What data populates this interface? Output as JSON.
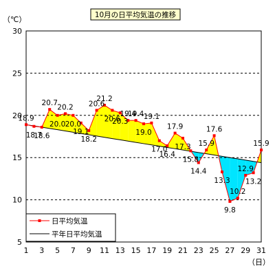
{
  "chart_data": {
    "type": "line",
    "title": "10月の日平均気温の推移",
    "ylabel": "（℃）",
    "xlabel": "（日）",
    "ylim": [
      5,
      30
    ],
    "y_ticks": [
      "5",
      "10",
      "15",
      "20",
      "25",
      "30"
    ],
    "x_ticks": [
      "1",
      "3",
      "5",
      "7",
      "9",
      "11",
      "13",
      "15",
      "17",
      "19",
      "21",
      "23",
      "25",
      "27",
      "29",
      "31"
    ],
    "x": [
      1,
      2,
      3,
      4,
      5,
      6,
      7,
      8,
      9,
      10,
      11,
      12,
      13,
      14,
      15,
      16,
      17,
      18,
      19,
      20,
      21,
      22,
      23,
      24,
      25,
      26,
      27,
      28,
      29,
      30,
      31
    ],
    "series": [
      {
        "name": "日平均気温",
        "values": [
          18.9,
          18.7,
          18.6,
          20.7,
          20.0,
          20.2,
          20.0,
          19.1,
          18.2,
          20.6,
          21.2,
          20.6,
          20.3,
          19.4,
          19.4,
          19.0,
          19.1,
          17.0,
          16.4,
          17.9,
          17.3,
          15.8,
          14.4,
          15.9,
          17.6,
          13.3,
          9.8,
          10.2,
          12.9,
          13.2,
          15.9
        ],
        "labels": [
          "18.9",
          "18.7",
          "18.6",
          "20.7",
          "20.0",
          "20.2",
          "20.0",
          "19.1",
          "18.2",
          "20.6",
          "21.2",
          "20.6",
          "20.3",
          "19.4",
          "19.4",
          "19.0",
          "19.1",
          "17.0",
          "16.4",
          "17.9",
          "17.3",
          "15.8",
          "14.4",
          "15.9",
          "17.6",
          "13.3",
          "9.8",
          "10.2",
          "12.9",
          "13.2",
          "15.9"
        ]
      },
      {
        "name": "平年日平均気温",
        "values": [
          18.9,
          18.75,
          18.6,
          18.45,
          18.3,
          18.15,
          18.0,
          17.85,
          17.7,
          17.55,
          17.4,
          17.25,
          17.1,
          16.95,
          16.8,
          16.65,
          16.5,
          16.35,
          16.2,
          16.05,
          15.9,
          15.75,
          15.6,
          15.45,
          15.3,
          15.15,
          15.0,
          14.85,
          14.7,
          14.55,
          14.4
        ]
      }
    ],
    "colors": {
      "observed_line": "#ff0000",
      "normal_line": "#000000",
      "above_fill": "#ffff00",
      "below_fill": "#00e5ff",
      "title_bg": "#ffffcc"
    },
    "grid": true,
    "legend": "bottom-left"
  }
}
